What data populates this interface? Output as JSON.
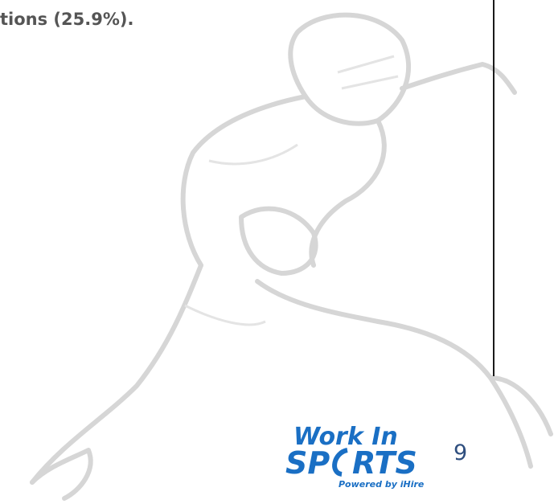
{
  "document": {
    "text_fragment": "tions (25.9%).",
    "logo": {
      "line1": "Work In",
      "line2_a": "SP",
      "line2_b": "RTS",
      "tagline_a": "Powered by",
      "tagline_b": "iHire"
    },
    "page_number": "9"
  }
}
